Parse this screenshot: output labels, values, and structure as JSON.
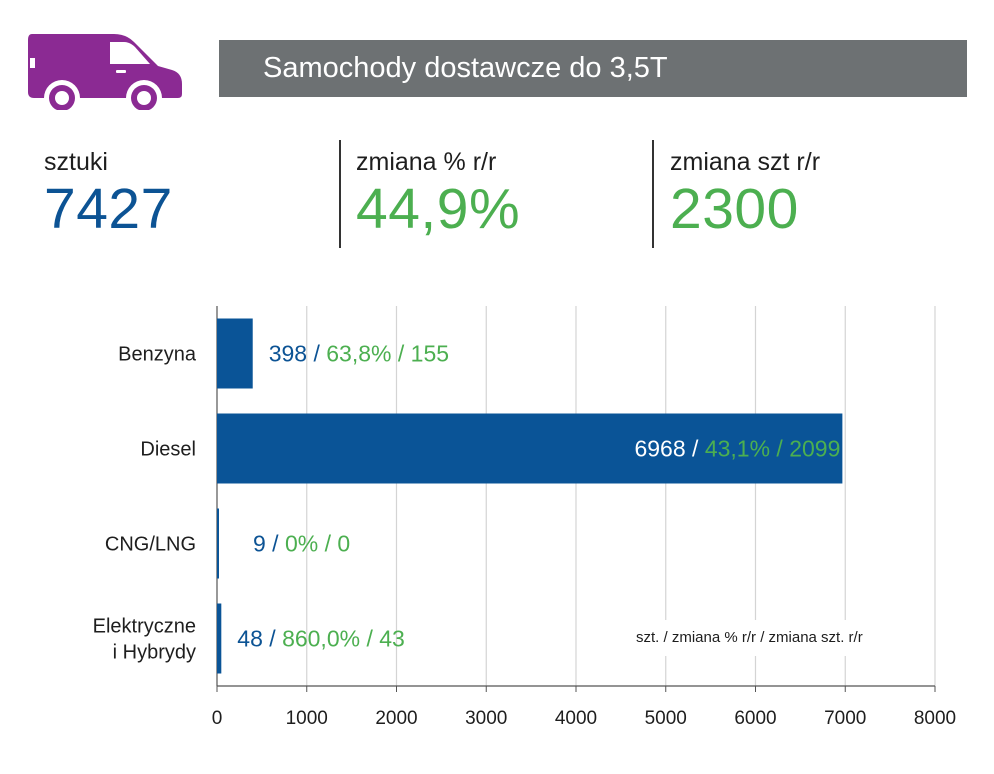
{
  "header": {
    "title": "Samochody dostawcze do 3,5T",
    "icon": "van-icon",
    "icon_color": "#8b2a93",
    "bar_color": "#6d7173"
  },
  "stats": [
    {
      "label": "sztuki",
      "value": "7427",
      "color": "#0c5394"
    },
    {
      "label": "zmiana % r/r",
      "value": "44,9%",
      "color": "#4caf50"
    },
    {
      "label": "zmiana szt r/r",
      "value": "2300",
      "color": "#4caf50"
    }
  ],
  "colors": {
    "bar": "#0a5497",
    "blue_text": "#0c5394",
    "green_text": "#4caf50",
    "grid": "#d4d4d4"
  },
  "chart_data": {
    "type": "bar",
    "orientation": "horizontal",
    "categories": [
      "Benzyna",
      "Diesel",
      "CNG/LNG",
      "Elektryczne i Hybrydy"
    ],
    "category_lines": [
      [
        "Benzyna"
      ],
      [
        "Diesel"
      ],
      [
        "CNG/LNG"
      ],
      [
        "Elektryczne",
        "i Hybrydy"
      ]
    ],
    "values": [
      398,
      6968,
      9,
      48
    ],
    "change_pct": [
      "63,8%",
      "43,1%",
      "0%",
      "860,0%"
    ],
    "change_units": [
      155,
      2099,
      0,
      43
    ],
    "value_labels": [
      "398",
      "6968",
      "9",
      "48"
    ],
    "xlim": [
      0,
      8000
    ],
    "xticks": [
      0,
      1000,
      2000,
      3000,
      4000,
      5000,
      6000,
      7000,
      8000
    ],
    "grid": true,
    "legend_note": "szt. / zmiana % r/r / zmiana szt. r/r"
  }
}
